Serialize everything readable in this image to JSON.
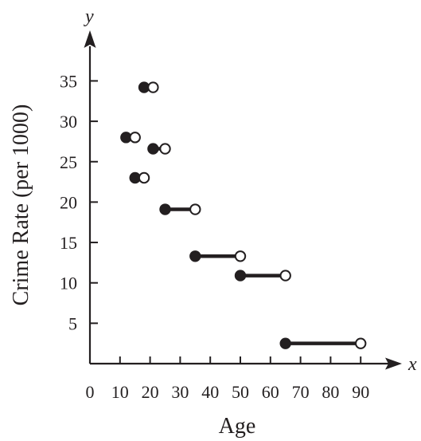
{
  "chart_data": {
    "type": "step",
    "xlabel": "Age",
    "ylabel": "Crime Rate (per 1000)",
    "x_axis_var": "x",
    "y_axis_var": "y",
    "xlim": [
      0,
      90
    ],
    "ylim": [
      0,
      35
    ],
    "x_ticks": [
      0,
      10,
      20,
      30,
      40,
      50,
      60,
      70,
      80,
      90
    ],
    "y_ticks": [
      5,
      10,
      15,
      20,
      25,
      30,
      35
    ],
    "grid": false,
    "segments": [
      {
        "x_start": 12,
        "x_end": 15,
        "y": 28,
        "closed_start": true,
        "closed_end": false
      },
      {
        "x_start": 15,
        "x_end": 18,
        "y": 23,
        "closed_start": true,
        "closed_end": false
      },
      {
        "x_start": 18,
        "x_end": 21,
        "y": 34.2,
        "closed_start": true,
        "closed_end": false
      },
      {
        "x_start": 21,
        "x_end": 25,
        "y": 26.6,
        "closed_start": true,
        "closed_end": false
      },
      {
        "x_start": 25,
        "x_end": 35,
        "y": 19.1,
        "closed_start": true,
        "closed_end": false
      },
      {
        "x_start": 35,
        "x_end": 50,
        "y": 13.3,
        "closed_start": true,
        "closed_end": false
      },
      {
        "x_start": 50,
        "x_end": 65,
        "y": 10.9,
        "closed_start": true,
        "closed_end": false
      },
      {
        "x_start": 65,
        "x_end": 90,
        "y": 2.5,
        "closed_start": true,
        "closed_end": false
      }
    ]
  }
}
